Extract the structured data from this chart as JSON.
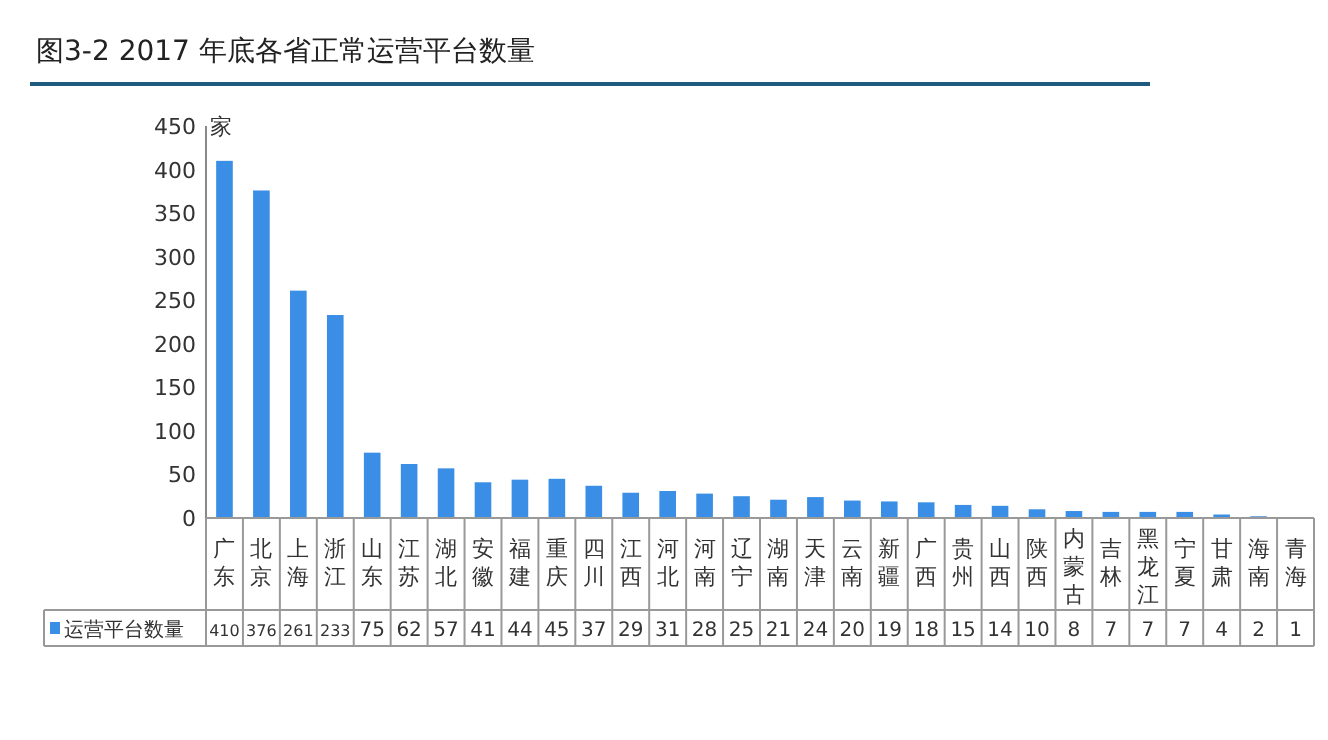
{
  "chart_data": {
    "type": "bar",
    "title": "图3-2    2017 年底各省正常运营平台数量",
    "ylabel": "家",
    "categories": [
      "广东",
      "北京",
      "上海",
      "浙江",
      "山东",
      "江苏",
      "湖北",
      "安徽",
      "福建",
      "重庆",
      "四川",
      "江西",
      "河北",
      "河南",
      "辽宁",
      "湖南",
      "天津",
      "云南",
      "新疆",
      "广西",
      "贵州",
      "山西",
      "陕西",
      "内蒙古",
      "吉林",
      "黑龙江",
      "宁夏",
      "甘肃",
      "海南",
      "青海"
    ],
    "series": [
      {
        "name": "运营平台数量",
        "color": "#3a8ee6",
        "values": [
          410,
          376,
          261,
          233,
          75,
          62,
          57,
          41,
          44,
          45,
          37,
          29,
          31,
          28,
          25,
          21,
          24,
          20,
          19,
          18,
          15,
          14,
          10,
          8,
          7,
          7,
          7,
          4,
          2,
          1
        ]
      }
    ],
    "ylim": [
      0,
      450
    ],
    "yticks": [
      0,
      50,
      100,
      150,
      200,
      250,
      300,
      350,
      400,
      450
    ],
    "data_labels": true,
    "legend": "bottom",
    "grid": false
  }
}
